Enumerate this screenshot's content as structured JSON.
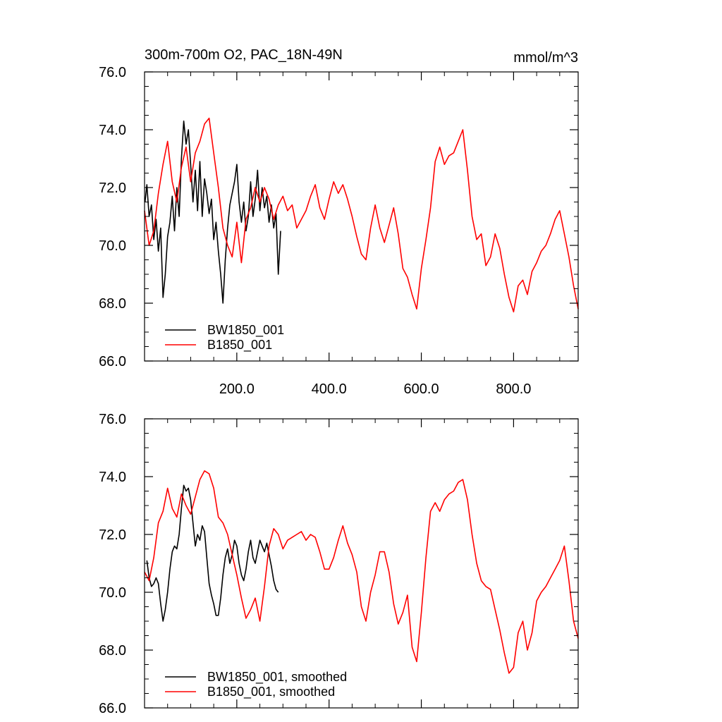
{
  "chart_data": [
    {
      "type": "line",
      "title": "300m-700m O2, PAC_18N-49N",
      "units": "mmol/m^3",
      "xlim": [
        0,
        940
      ],
      "ylim": [
        66,
        76
      ],
      "yticks": [
        66,
        68,
        70,
        72,
        74,
        76
      ],
      "ytick_labels": [
        "66.0",
        "68.0",
        "70.0",
        "72.0",
        "74.0",
        "76.0"
      ],
      "xticks": [
        200,
        400,
        600,
        800
      ],
      "xtick_labels": [
        "200.0",
        "400.0",
        "600.0",
        "800.0"
      ],
      "legend": "bottom-left",
      "series": [
        {
          "name": "BW1850_001",
          "color": "#000000",
          "x": [
            1,
            5,
            10,
            15,
            20,
            25,
            30,
            35,
            40,
            45,
            50,
            55,
            60,
            65,
            70,
            75,
            80,
            85,
            90,
            95,
            100,
            105,
            110,
            115,
            120,
            125,
            130,
            135,
            140,
            145,
            150,
            155,
            160,
            165,
            170,
            175,
            180,
            185,
            190,
            195,
            200,
            205,
            210,
            215,
            220,
            225,
            230,
            235,
            240,
            245,
            250,
            255,
            260,
            265,
            270,
            275,
            280,
            285,
            290,
            295
          ],
          "values": [
            71.5,
            72.1,
            71.0,
            71.4,
            70.2,
            70.9,
            69.8,
            70.6,
            68.2,
            69.0,
            70.3,
            70.8,
            71.7,
            70.5,
            72.0,
            71.0,
            73.0,
            74.3,
            73.5,
            74.0,
            72.8,
            71.5,
            72.6,
            71.2,
            72.9,
            71.0,
            72.3,
            71.8,
            71.1,
            71.6,
            70.2,
            70.8,
            69.8,
            69.0,
            68.0,
            69.5,
            70.6,
            71.4,
            71.8,
            72.2,
            72.8,
            71.5,
            70.8,
            71.5,
            70.5,
            71.0,
            72.2,
            71.0,
            71.6,
            72.6,
            71.2,
            72.0,
            71.3,
            71.7,
            70.8,
            71.4,
            70.6,
            71.1,
            69.0,
            70.5
          ]
        },
        {
          "name": "B1850_001",
          "color": "#ff0000",
          "x": [
            0,
            10,
            20,
            30,
            40,
            50,
            60,
            70,
            80,
            90,
            100,
            110,
            120,
            130,
            140,
            150,
            160,
            170,
            180,
            190,
            200,
            210,
            220,
            230,
            240,
            250,
            260,
            270,
            280,
            290,
            300,
            310,
            320,
            330,
            340,
            350,
            360,
            370,
            380,
            390,
            400,
            410,
            420,
            430,
            440,
            450,
            460,
            470,
            480,
            490,
            500,
            510,
            520,
            530,
            540,
            550,
            560,
            570,
            580,
            590,
            600,
            610,
            620,
            630,
            640,
            650,
            660,
            670,
            680,
            690,
            700,
            710,
            720,
            730,
            740,
            750,
            760,
            770,
            780,
            790,
            800,
            810,
            820,
            830,
            840,
            850,
            860,
            870,
            880,
            890,
            900,
            910,
            920,
            930,
            940
          ],
          "values": [
            71.2,
            70.0,
            70.5,
            71.8,
            72.8,
            73.6,
            72.2,
            71.5,
            72.7,
            73.4,
            72.2,
            73.2,
            73.6,
            74.2,
            74.4,
            73.2,
            72.0,
            70.6,
            70.0,
            69.6,
            70.8,
            69.4,
            70.9,
            71.3,
            72.0,
            71.5,
            72.0,
            71.6,
            70.9,
            71.4,
            71.7,
            71.2,
            71.4,
            70.6,
            70.9,
            71.2,
            71.7,
            72.1,
            71.3,
            70.9,
            71.6,
            72.2,
            71.8,
            72.1,
            71.6,
            71.0,
            70.3,
            69.7,
            69.5,
            70.6,
            71.4,
            70.6,
            70.1,
            70.7,
            71.3,
            70.4,
            69.2,
            68.9,
            68.3,
            67.8,
            69.2,
            70.2,
            71.3,
            72.9,
            73.4,
            72.8,
            73.1,
            73.2,
            73.6,
            74.0,
            72.6,
            71.0,
            70.2,
            70.4,
            69.3,
            69.6,
            70.4,
            69.9,
            69.0,
            68.2,
            67.7,
            68.6,
            68.8,
            68.3,
            69.1,
            69.4,
            69.8,
            70.0,
            70.4,
            70.9,
            71.2,
            70.4,
            69.6,
            68.6,
            67.8
          ]
        }
      ]
    },
    {
      "type": "line",
      "xlim": [
        0,
        940
      ],
      "ylim": [
        66,
        76
      ],
      "yticks": [
        66,
        68,
        70,
        72,
        74,
        76
      ],
      "ytick_labels": [
        "66.0",
        "68.0",
        "70.0",
        "72.0",
        "74.0",
        "76.0"
      ],
      "xticks": [
        200,
        400,
        600,
        800
      ],
      "legend": "bottom-left",
      "series": [
        {
          "name": "BW1850_001, smoothed",
          "color": "#000000",
          "x": [
            5,
            10,
            15,
            20,
            25,
            30,
            35,
            40,
            45,
            50,
            55,
            60,
            65,
            70,
            75,
            80,
            85,
            90,
            95,
            100,
            105,
            110,
            115,
            120,
            125,
            130,
            135,
            140,
            145,
            150,
            155,
            160,
            165,
            170,
            175,
            180,
            185,
            190,
            195,
            200,
            205,
            210,
            215,
            220,
            225,
            230,
            235,
            240,
            245,
            250,
            255,
            260,
            265,
            270,
            275,
            280,
            285,
            290
          ],
          "values": [
            71.1,
            70.5,
            70.2,
            70.3,
            70.5,
            70.3,
            69.6,
            69.0,
            69.4,
            70.0,
            70.8,
            71.4,
            71.6,
            71.5,
            72.0,
            72.9,
            73.7,
            73.5,
            73.6,
            73.2,
            72.4,
            71.6,
            72.0,
            71.8,
            72.3,
            72.1,
            71.2,
            70.3,
            69.9,
            69.6,
            69.2,
            69.2,
            69.8,
            70.6,
            71.2,
            71.5,
            71.0,
            71.3,
            71.8,
            71.6,
            71.0,
            70.6,
            70.4,
            70.8,
            71.4,
            71.8,
            71.2,
            71.0,
            71.4,
            71.8,
            71.6,
            71.4,
            71.7,
            71.3,
            70.9,
            70.4,
            70.1,
            70.0
          ]
        },
        {
          "name": "B1850_001, smoothed",
          "color": "#ff0000",
          "x": [
            0,
            10,
            20,
            30,
            40,
            50,
            60,
            70,
            80,
            90,
            100,
            110,
            120,
            130,
            140,
            150,
            160,
            170,
            180,
            190,
            200,
            210,
            220,
            230,
            240,
            250,
            260,
            270,
            280,
            290,
            300,
            310,
            320,
            330,
            340,
            350,
            360,
            370,
            380,
            390,
            400,
            410,
            420,
            430,
            440,
            450,
            460,
            470,
            480,
            490,
            500,
            510,
            520,
            530,
            540,
            550,
            560,
            570,
            580,
            590,
            600,
            610,
            620,
            630,
            640,
            650,
            660,
            670,
            680,
            690,
            700,
            710,
            720,
            730,
            740,
            750,
            760,
            770,
            780,
            790,
            800,
            810,
            820,
            830,
            840,
            850,
            860,
            870,
            880,
            890,
            900,
            910,
            920,
            930,
            940
          ],
          "values": [
            70.7,
            70.4,
            71.2,
            72.4,
            72.8,
            73.6,
            72.9,
            72.6,
            73.4,
            73.0,
            72.7,
            73.3,
            73.9,
            74.2,
            74.1,
            73.6,
            72.6,
            72.4,
            72.0,
            71.3,
            70.6,
            69.8,
            69.1,
            69.4,
            69.8,
            69.0,
            70.2,
            71.6,
            72.2,
            72.0,
            71.5,
            71.8,
            71.9,
            72.0,
            72.1,
            71.8,
            72.0,
            71.9,
            71.4,
            70.8,
            70.8,
            71.2,
            71.8,
            72.3,
            71.7,
            71.3,
            70.7,
            69.5,
            69.0,
            70.0,
            70.6,
            71.4,
            71.4,
            70.7,
            69.6,
            68.9,
            69.3,
            69.9,
            68.1,
            67.6,
            69.3,
            71.2,
            72.8,
            73.1,
            72.8,
            73.2,
            73.4,
            73.5,
            73.8,
            73.9,
            73.2,
            72.0,
            71.0,
            70.4,
            70.2,
            70.1,
            69.4,
            68.7,
            67.9,
            67.2,
            67.4,
            68.6,
            69.0,
            68.0,
            68.6,
            69.7,
            70.0,
            70.2,
            70.5,
            70.8,
            71.1,
            71.6,
            70.4,
            69.0,
            68.4
          ]
        }
      ]
    }
  ]
}
